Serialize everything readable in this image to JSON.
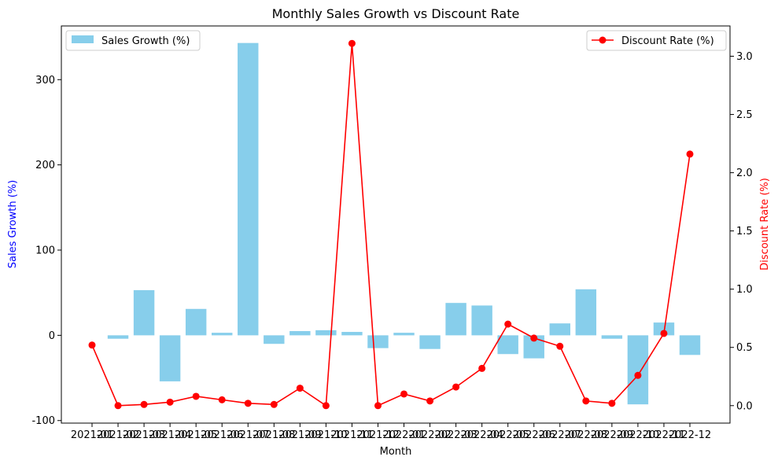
{
  "chart_data": {
    "type": "bar",
    "title": "Monthly Sales Growth vs Discount Rate",
    "xlabel": "Month",
    "ylabel_left": "Sales Growth (%)",
    "ylabel_right": "Discount Rate (%)",
    "categories": [
      "2021-01",
      "2021-02",
      "2021-03",
      "2021-04",
      "2021-05",
      "2021-06",
      "2021-07",
      "2021-08",
      "2021-09",
      "2021-10",
      "2021-11",
      "2021-12",
      "2022-01",
      "2022-02",
      "2022-03",
      "2022-04",
      "2022-05",
      "2022-06",
      "2022-07",
      "2022-08",
      "2022-09",
      "2022-10",
      "2022-11",
      "2022-12"
    ],
    "ylim_left": [
      -103,
      363
    ],
    "ylim_right": [
      -0.15,
      3.26
    ],
    "yticks_left": [
      -100,
      0,
      100,
      200,
      300
    ],
    "yticks_right": [
      "0.0",
      "0.5",
      "1.0",
      "1.5",
      "2.0",
      "2.5",
      "3.0"
    ],
    "series": [
      {
        "name": "Sales Growth (%)",
        "axis": "left",
        "kind": "bar",
        "color": "#87ceeb",
        "values": [
          null,
          -4,
          53,
          -54,
          31,
          3,
          343,
          -10,
          5,
          6,
          4,
          -15,
          3,
          -16,
          38,
          35,
          -22,
          -27,
          14,
          54,
          -4,
          -81,
          15,
          -23
        ]
      },
      {
        "name": "Discount Rate (%)",
        "axis": "right",
        "kind": "line",
        "color": "#ff0000",
        "values": [
          0.52,
          0.0,
          0.01,
          0.03,
          0.08,
          0.05,
          0.02,
          0.01,
          0.15,
          0.0,
          3.11,
          0.0,
          0.1,
          0.04,
          0.16,
          0.32,
          0.7,
          0.58,
          0.51,
          0.04,
          0.02,
          0.26,
          0.62,
          2.16
        ]
      }
    ],
    "left_axis_color": "#0000ff",
    "right_axis_color": "#ff0000",
    "legend_left_placement": "upper left",
    "legend_right_placement": "upper right",
    "grid": false
  }
}
